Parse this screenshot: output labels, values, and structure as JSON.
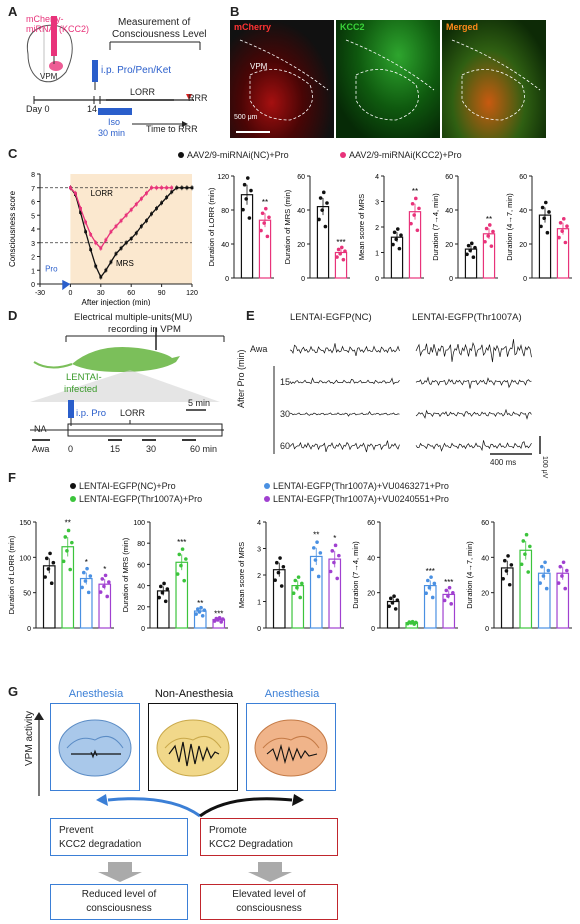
{
  "panels": {
    "a": "A",
    "b": "B",
    "c": "C",
    "d": "D",
    "e": "E",
    "f": "F",
    "g": "G"
  },
  "panel_a": {
    "virus_line1": "mCherry-",
    "virus_line2": "miRNAi (KCC2)",
    "target": "VPM",
    "measurement_line1": "Measurement of",
    "measurement_line2": "Consciousness Level",
    "injection": "i.p. Pro/Pen/Ket",
    "day_label": "Day 0",
    "day14": "14",
    "lorr": "LORR",
    "rrr": "RRR",
    "iso": "Iso",
    "iso_time": "30 min",
    "time_to_rrr": "Time to RRR"
  },
  "panel_b": {
    "mcherry": "mCherry",
    "kcc2": "KCC2",
    "merged": "Merged",
    "vpm": "VPM",
    "scale": "500 μm",
    "colors": {
      "mcherry": "#ff3333",
      "kcc2": "#3ad43a",
      "merged": "#ff8a1a"
    }
  },
  "panel_c": {
    "legend_nc": "AAV2/9-miRNAi(NC)+Pro",
    "legend_kcc2": "AAV2/9-miRNAi(KCC2)+Pro",
    "ylabel": "Consciousness score",
    "xlabel": "After injection (min)",
    "pro": "Pro",
    "lorr": "LORR",
    "mrs": "MRS",
    "colors": {
      "nc": "#111111",
      "kcc2": "#e8337a",
      "shade": "#fbe8cf"
    }
  },
  "panel_d": {
    "title_line1": "Electrical multiple-units(MU)",
    "title_line2": "recording in VPM",
    "infected_line1": "LENTAI-",
    "infected_line2": "infected",
    "injection": "i.p. Pro",
    "scale": "5 min",
    "na": "NA",
    "lorr": "LORR",
    "awa": "Awa",
    "ticks": [
      "0",
      "15",
      "30",
      "60 min"
    ]
  },
  "panel_e": {
    "col_nc": "LENTAI-EGFP(NC)",
    "col_mut": "LENTAI-EGFP(Thr1007A)",
    "rows": [
      "Awa",
      "15",
      "30",
      "60"
    ],
    "after_pro": "After Pro (min)",
    "scale_t": "400 ms",
    "scale_v": "100 μV"
  },
  "panel_f": {
    "legend": [
      {
        "label": "LENTAI-EGFP(NC)+Pro",
        "color": "#111111"
      },
      {
        "label": "LENTAI-EGFP(Thr1007A)+Pro",
        "color": "#3cc43c"
      },
      {
        "label": "LENTAI-EGFP(Thr1007A)+VU0463271+Pro",
        "color": "#4a90e2"
      },
      {
        "label": "LENTAI-EGFP(Thr1007A)+VU0240551+Pro",
        "color": "#a040d0"
      }
    ]
  },
  "panel_g": {
    "ylabel": "VPM activity",
    "anesthesia_left": "Anesthesia",
    "non_anesthesia": "Non-Anesthesia",
    "anesthesia_right": "Anesthesia",
    "prevent_line1": "Prevent",
    "prevent_line2": "KCC2 degradation",
    "promote_line1": "Promote",
    "promote_line2": "KCC2 Degradation",
    "reduced_line1": "Reduced level of",
    "reduced_line2": "consciousness",
    "elevated_line1": "Elevated level of",
    "elevated_line2": "consciousness",
    "colors": {
      "blue": "#3b7fd6",
      "red": "#c0262d",
      "black": "#111111"
    }
  },
  "chart_data": [
    {
      "type": "line",
      "title": "",
      "xlabel": "After injection (min)",
      "ylabel": "Consciousness score",
      "xlim": [
        -30,
        120
      ],
      "ylim": [
        0,
        8
      ],
      "x_ticks": [
        "-30",
        "0",
        "30",
        "60",
        "90",
        "120"
      ],
      "y_ticks": [
        "0",
        "1",
        "2",
        "3",
        "4",
        "5",
        "6",
        "7",
        "8"
      ],
      "series": [
        {
          "name": "AAV2/9-miRNAi(NC)+Pro",
          "x": [
            0,
            5,
            10,
            15,
            20,
            25,
            30,
            35,
            40,
            45,
            50,
            55,
            60,
            65,
            70,
            75,
            80,
            85,
            90,
            95,
            100,
            105,
            110,
            115,
            120
          ],
          "values": [
            7,
            6.5,
            5.2,
            3.8,
            2.5,
            1.3,
            0.5,
            1,
            1.6,
            2.2,
            2.6,
            3,
            3.3,
            3.7,
            4.2,
            4.6,
            5.1,
            5.5,
            5.9,
            6.3,
            6.7,
            7,
            7,
            7,
            7
          ]
        },
        {
          "name": "AAV2/9-miRNAi(KCC2)+Pro",
          "x": [
            0,
            5,
            10,
            15,
            20,
            25,
            30,
            35,
            40,
            45,
            50,
            55,
            60,
            65,
            70,
            75,
            80,
            85,
            90,
            95,
            100
          ],
          "values": [
            7,
            6.6,
            5.5,
            4.5,
            3.6,
            3,
            2.6,
            3.2,
            3.8,
            4.2,
            4.6,
            5,
            5.4,
            5.8,
            6.2,
            6.6,
            7,
            7,
            7,
            7,
            7
          ]
        }
      ]
    },
    {
      "type": "bar",
      "ylabel": "Duration of LORR (min)",
      "categories": [
        "NC",
        "KCC2"
      ],
      "values": [
        98,
        68
      ],
      "ylim": [
        0,
        120
      ],
      "y_ticks": [
        "0",
        "40",
        "80",
        "120"
      ],
      "significance": [
        "",
        "**"
      ]
    },
    {
      "type": "bar",
      "ylabel": "Duration of MRS (min)",
      "categories": [
        "NC",
        "KCC2"
      ],
      "values": [
        42,
        15
      ],
      "ylim": [
        0,
        60
      ],
      "y_ticks": [
        "0",
        "20",
        "40",
        "60"
      ],
      "significance": [
        "",
        "***"
      ]
    },
    {
      "type": "bar",
      "ylabel": "Mean score of MRS",
      "categories": [
        "NC",
        "KCC2"
      ],
      "values": [
        1.6,
        2.6
      ],
      "ylim": [
        0,
        4
      ],
      "y_ticks": [
        "0",
        "1",
        "2",
        "3",
        "4"
      ],
      "significance": [
        "",
        "**"
      ]
    },
    {
      "type": "bar",
      "ylabel": "Duration (7→4, min)",
      "categories": [
        "NC",
        "KCC2"
      ],
      "values": [
        17,
        26
      ],
      "ylim": [
        0,
        60
      ],
      "y_ticks": [
        "0",
        "20",
        "40",
        "60"
      ],
      "significance": [
        "",
        "**"
      ]
    },
    {
      "type": "bar",
      "ylabel": "Duration (4→7, min)",
      "categories": [
        "NC",
        "KCC2"
      ],
      "values": [
        37,
        29
      ],
      "ylim": [
        0,
        60
      ],
      "y_ticks": [
        "0",
        "20",
        "40",
        "60"
      ],
      "significance": [
        "",
        ""
      ]
    },
    {
      "type": "bar",
      "ylabel": "Duration of LORR (min)",
      "categories": [
        "NC",
        "Thr1007A",
        "VU0463271",
        "VU0240551"
      ],
      "values": [
        88,
        115,
        70,
        62
      ],
      "ylim": [
        0,
        150
      ],
      "y_ticks": [
        "0",
        "50",
        "100",
        "150"
      ],
      "significance": [
        "",
        "**",
        "*",
        "*"
      ]
    },
    {
      "type": "bar",
      "ylabel": "Duration of MRS (min)",
      "categories": [
        "NC",
        "Thr1007A",
        "VU0463271",
        "VU0240551"
      ],
      "values": [
        35,
        62,
        16,
        8
      ],
      "ylim": [
        0,
        100
      ],
      "y_ticks": [
        "0",
        "20",
        "40",
        "60",
        "80",
        "100"
      ],
      "significance": [
        "",
        "***",
        "**",
        "***"
      ]
    },
    {
      "type": "bar",
      "ylabel": "Mean score of MRS",
      "categories": [
        "NC",
        "Thr1007A",
        "VU0463271",
        "VU0240551"
      ],
      "values": [
        2.2,
        1.6,
        2.7,
        2.6
      ],
      "ylim": [
        0,
        4
      ],
      "y_ticks": [
        "0",
        "1",
        "2",
        "3",
        "4"
      ],
      "significance": [
        "",
        "",
        "**",
        "*"
      ]
    },
    {
      "type": "bar",
      "ylabel": "Duration (7→4, min)",
      "categories": [
        "NC",
        "Thr1007A",
        "VU0463271",
        "VU0240551"
      ],
      "values": [
        15,
        3,
        24,
        19
      ],
      "ylim": [
        0,
        60
      ],
      "y_ticks": [
        "0",
        "20",
        "40",
        "60"
      ],
      "significance": [
        "",
        "",
        "***",
        "***"
      ]
    },
    {
      "type": "bar",
      "ylabel": "Duration (4→7, min)",
      "categories": [
        "NC",
        "Thr1007A",
        "VU0463271",
        "VU0240551"
      ],
      "values": [
        34,
        44,
        31,
        31
      ],
      "ylim": [
        0,
        60
      ],
      "y_ticks": [
        "0",
        "20",
        "40",
        "60"
      ],
      "significance": [
        "",
        "",
        "",
        ""
      ]
    }
  ]
}
